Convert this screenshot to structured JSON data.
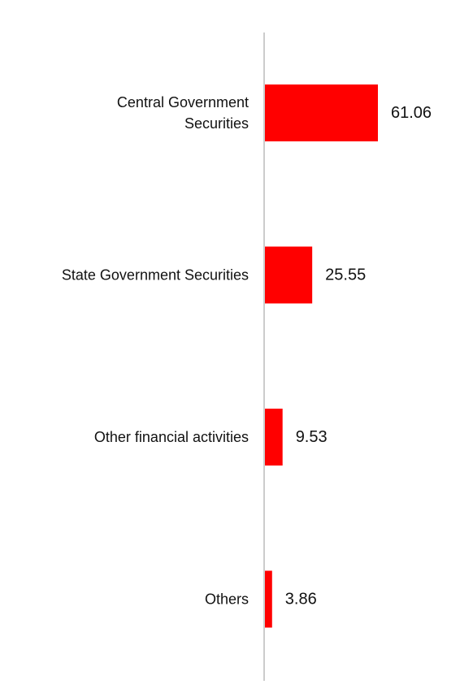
{
  "chart_data": {
    "type": "bar",
    "orientation": "horizontal",
    "categories": [
      [
        "Central Government",
        "Securities"
      ],
      [
        "State Government Securities"
      ],
      [
        "Other financial activities"
      ],
      [
        "Others"
      ]
    ],
    "values": [
      61.06,
      25.55,
      9.53,
      3.86
    ],
    "value_labels": [
      "61.06",
      "25.55",
      "9.53",
      "3.86"
    ],
    "xlim": [
      0,
      100
    ],
    "grid": false,
    "legend": "none",
    "colors": {
      "bar": "#ff0000",
      "axis": "#cccccc",
      "text": "#111111"
    }
  }
}
